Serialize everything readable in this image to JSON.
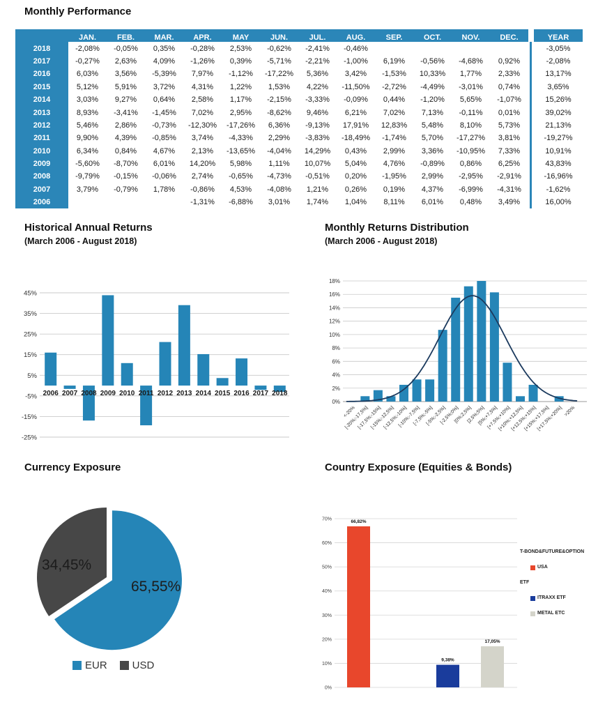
{
  "performance_table": {
    "title": "Monthly Performance",
    "columns": [
      "JAN.",
      "FEB.",
      "MAR.",
      "APR.",
      "MAY",
      "JUN.",
      "JUL.",
      "AUG.",
      "SEP.",
      "OCT.",
      "NOV.",
      "DEC.",
      "YEAR"
    ],
    "rows": [
      {
        "year": "2018",
        "monthly": [
          "-2,08%",
          "-0,05%",
          "0,35%",
          "-0,28%",
          "2,53%",
          "-0,62%",
          "-2,41%",
          "-0,46%",
          "",
          "",
          "",
          ""
        ],
        "year_total": "-3,05%"
      },
      {
        "year": "2017",
        "monthly": [
          "-0,27%",
          "2,63%",
          "4,09%",
          "-1,26%",
          "0,39%",
          "-5,71%",
          "-2,21%",
          "-1,00%",
          "6,19%",
          "-0,56%",
          "-4,68%",
          "0,92%"
        ],
        "year_total": "-2,08%"
      },
      {
        "year": "2016",
        "monthly": [
          "6,03%",
          "3,56%",
          "-5,39%",
          "7,97%",
          "-1,12%",
          "-17,22%",
          "5,36%",
          "3,42%",
          "-1,53%",
          "10,33%",
          "1,77%",
          "2,33%"
        ],
        "year_total": "13,17%"
      },
      {
        "year": "2015",
        "monthly": [
          "5,12%",
          "5,91%",
          "3,72%",
          "4,31%",
          "1,22%",
          "1,53%",
          "4,22%",
          "-11,50%",
          "-2,72%",
          "-4,49%",
          "-3,01%",
          "0,74%"
        ],
        "year_total": "3,65%"
      },
      {
        "year": "2014",
        "monthly": [
          "3,03%",
          "9,27%",
          "0,64%",
          "2,58%",
          "1,17%",
          "-2,15%",
          "-3,33%",
          "-0,09%",
          "0,44%",
          "-1,20%",
          "5,65%",
          "-1,07%"
        ],
        "year_total": "15,26%"
      },
      {
        "year": "2013",
        "monthly": [
          "8,93%",
          "-3,41%",
          "-1,45%",
          "7,02%",
          "2,95%",
          "-8,62%",
          "9,46%",
          "6,21%",
          "7,02%",
          "7,13%",
          "-0,11%",
          "0,01%"
        ],
        "year_total": "39,02%"
      },
      {
        "year": "2012",
        "monthly": [
          "5,46%",
          "2,86%",
          "-0,73%",
          "-12,30%",
          "-17,26%",
          "6,36%",
          "-9,13%",
          "17,91%",
          "12,83%",
          "5,48%",
          "8,10%",
          "5,73%"
        ],
        "year_total": "21,13%"
      },
      {
        "year": "2011",
        "monthly": [
          "9,90%",
          "4,39%",
          "-0,85%",
          "3,74%",
          "-4,33%",
          "2,29%",
          "-3,83%",
          "-18,49%",
          "-1,74%",
          "5,70%",
          "-17,27%",
          "3,81%"
        ],
        "year_total": "-19,27%"
      },
      {
        "year": "2010",
        "monthly": [
          "6,34%",
          "0,84%",
          "4,67%",
          "2,13%",
          "-13,65%",
          "-4,04%",
          "14,29%",
          "0,43%",
          "2,99%",
          "3,36%",
          "-10,95%",
          "7,33%"
        ],
        "year_total": "10,91%"
      },
      {
        "year": "2009",
        "monthly": [
          "-5,60%",
          "-8,70%",
          "6,01%",
          "14,20%",
          "5,98%",
          "1,11%",
          "10,07%",
          "5,04%",
          "4,76%",
          "-0,89%",
          "0,86%",
          "6,25%"
        ],
        "year_total": "43,83%"
      },
      {
        "year": "2008",
        "monthly": [
          "-9,79%",
          "-0,15%",
          "-0,06%",
          "2,74%",
          "-0,65%",
          "-4,73%",
          "-0,51%",
          "0,20%",
          "-1,95%",
          "2,99%",
          "-2,95%",
          "-2,91%"
        ],
        "year_total": "-16,96%"
      },
      {
        "year": "2007",
        "monthly": [
          "3,79%",
          "-0,79%",
          "1,78%",
          "-0,86%",
          "4,53%",
          "-4,08%",
          "1,21%",
          "0,26%",
          "0,19%",
          "4,37%",
          "-6,99%",
          "-4,31%"
        ],
        "year_total": "-1,62%"
      },
      {
        "year": "2006",
        "monthly": [
          "",
          "",
          "",
          "-1,31%",
          "-6,88%",
          "3,01%",
          "1,74%",
          "1,04%",
          "8,11%",
          "6,01%",
          "0,48%",
          "3,49%"
        ],
        "year_total": "16,00%"
      }
    ]
  },
  "colors": {
    "table_blue": "#2b86b8",
    "bar_blue": "#2585b7",
    "curve_navy": "#1b3a5e",
    "grid_gray": "#c9c9c9",
    "pie_gray": "#474747",
    "orange": "#e8472c",
    "navy_bar": "#1a3c9c",
    "light_gray_bar": "#d4d4ca"
  },
  "chart_data": [
    {
      "id": "annual_returns",
      "type": "bar",
      "title": "Historical Annual Returns",
      "subtitle": "(March 2006 - August 2018)",
      "categories": [
        "2006",
        "2007",
        "2008",
        "2009",
        "2010",
        "2011",
        "2012",
        "2013",
        "2014",
        "2015",
        "2016",
        "2017",
        "2018"
      ],
      "values": [
        16.0,
        -1.62,
        -16.96,
        43.83,
        10.91,
        -19.27,
        21.13,
        39.02,
        15.26,
        3.65,
        13.17,
        -2.08,
        -3.05
      ],
      "ylim": [
        -25,
        45
      ],
      "ytick_step": 10,
      "ytick_labels": [
        "45%",
        "35%",
        "25%",
        "15%",
        "5%",
        "-5%",
        "-15%",
        "-25%"
      ],
      "bar_color": "#2585b7",
      "grid": true,
      "legend_position": "none"
    },
    {
      "id": "monthly_returns_distribution",
      "type": "bar",
      "title": "Monthly Returns Distribution",
      "subtitle": "(March 2006 - August 2018)",
      "categories": [
        "<-20%",
        "[-20%;-17,5%]",
        "[-17,5%;-15%]",
        "[-15%;-12,5%]",
        "[-12,5%;-10%]",
        "[-10%;-7,5%]",
        "[-7,5%;-5%]",
        "[-5%;-2,5%]",
        "[-2,5%;0%]",
        "[0%;2,5%]",
        "[2,5%;5%]",
        "[5%;+7,5%]",
        "[+7,5%;+10%]",
        "[+10%;+12,5%]",
        "[+12,5%;+15%]",
        "[+15%;+17,5%]",
        "[+17,5%;+20%]",
        ">20%"
      ],
      "values": [
        0,
        0.8,
        1.7,
        0.8,
        2.5,
        3.3,
        3.3,
        10.7,
        15.5,
        17.2,
        18.0,
        16.3,
        5.8,
        0.8,
        2.5,
        0,
        0.8,
        0
      ],
      "ylim": [
        0,
        18
      ],
      "ytick_step": 2,
      "bar_color": "#2585b7",
      "grid": true,
      "overlay_curve": {
        "type": "normal",
        "peak": 15.8,
        "mean_index": 9.3,
        "sigma": 2.55,
        "color": "#1b3a5e"
      },
      "legend_position": "none"
    },
    {
      "id": "currency_exposure",
      "type": "pie",
      "title": "Currency Exposure",
      "slices": [
        {
          "label": "EUR",
          "value": 65.55,
          "display": "65,55%",
          "color": "#2585b7",
          "exploded": true
        },
        {
          "label": "USD",
          "value": 34.45,
          "display": "34,45%",
          "color": "#474747",
          "exploded": false
        }
      ],
      "legend_position": "bottom"
    },
    {
      "id": "country_exposure",
      "type": "bar",
      "title": "Country Exposure (Equities & Bonds)",
      "categories": [
        "USA",
        "ITRAXX ETF",
        "METAL ETC"
      ],
      "values": [
        66.82,
        9.38,
        17.05
      ],
      "data_labels": [
        "66,82%",
        "9,38%",
        "17,05%"
      ],
      "bar_colors": [
        "#e8472c",
        "#1a3c9c",
        "#d4d4ca"
      ],
      "ylim": [
        0,
        70
      ],
      "ytick_step": 10,
      "grid": true,
      "legend_position": "right",
      "legend": {
        "groups": [
          {
            "header": "T-BOND&FUTURE&OPTION",
            "items": [
              {
                "label": "USA",
                "color": "#e8472c"
              }
            ]
          },
          {
            "header": "ETF",
            "items": [
              {
                "label": "ITRAXX ETF",
                "color": "#1a3c9c"
              },
              {
                "label": "METAL ETC",
                "color": "#d4d4ca"
              }
            ]
          }
        ]
      }
    }
  ]
}
